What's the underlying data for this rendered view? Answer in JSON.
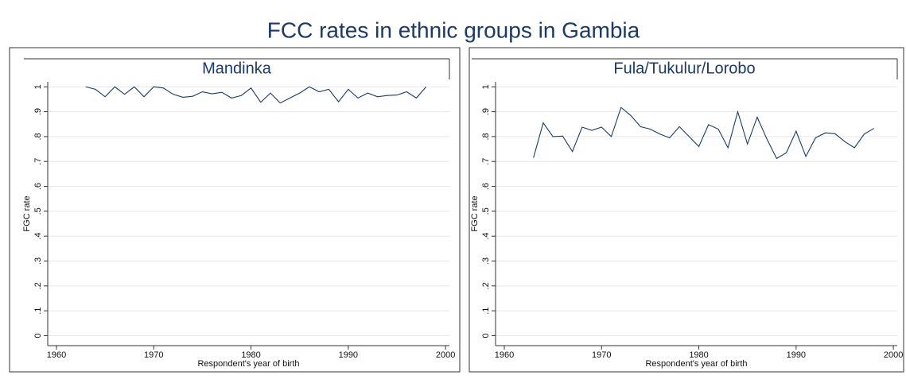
{
  "title": "FCC rates in ethnic groups in Gambia",
  "chart_data": [
    {
      "type": "line",
      "title": "Mandinka",
      "x_label": "Respondent's year of birth",
      "y_label": "FGC rate",
      "x": [
        1963,
        1964,
        1965,
        1966,
        1967,
        1968,
        1969,
        1970,
        1971,
        1972,
        1973,
        1974,
        1975,
        1976,
        1977,
        1978,
        1979,
        1980,
        1981,
        1982,
        1983,
        1984,
        1985,
        1986,
        1987,
        1988,
        1989,
        1990,
        1991,
        1992,
        1993,
        1994,
        1995,
        1996,
        1997,
        1998
      ],
      "values": [
        1.0,
        0.99,
        0.96,
        1.0,
        0.97,
        1.0,
        0.96,
        1.0,
        0.995,
        0.97,
        0.958,
        0.962,
        0.98,
        0.972,
        0.978,
        0.955,
        0.965,
        0.995,
        0.938,
        0.975,
        0.935,
        0.955,
        0.975,
        1.0,
        0.98,
        0.99,
        0.94,
        0.99,
        0.955,
        0.975,
        0.96,
        0.965,
        0.967,
        0.98,
        0.955,
        1.0
      ],
      "color": "#1a3a6a",
      "xlim": [
        1959.1,
        2000.4
      ],
      "ylim": [
        -0.04,
        1.02
      ],
      "xticks": [
        1960,
        1970,
        1980,
        1990,
        2000
      ],
      "yticks": [
        0,
        {
          "value": 0.1,
          "label": ".1"
        },
        {
          "value": 0.2,
          "label": ".2"
        },
        {
          "value": 0.3,
          "label": ".3"
        },
        {
          "value": 0.4,
          "label": ".4"
        },
        {
          "value": 0.5,
          "label": ".5"
        },
        {
          "value": 0.6,
          "label": ".6"
        },
        {
          "value": 0.7,
          "label": ".7"
        },
        {
          "value": 0.8,
          "label": ".8"
        },
        {
          "value": 0.9,
          "label": ".9"
        },
        1
      ],
      "grid": true
    },
    {
      "type": "line",
      "title": "Fula/Tukulur/Lorobo",
      "x_label": "Respondent's year of birth",
      "y_label": "FGC rate",
      "x": [
        1963,
        1964,
        1965,
        1966,
        1967,
        1968,
        1969,
        1970,
        1971,
        1972,
        1973,
        1974,
        1975,
        1976,
        1977,
        1978,
        1979,
        1980,
        1981,
        1982,
        1983,
        1984,
        1985,
        1986,
        1987,
        1988,
        1989,
        1990,
        1991,
        1992,
        1993,
        1994,
        1995,
        1996,
        1997,
        1998
      ],
      "values": [
        0.715,
        0.855,
        0.8,
        0.802,
        0.74,
        0.838,
        0.825,
        0.838,
        0.8,
        0.917,
        0.885,
        0.84,
        0.83,
        0.81,
        0.795,
        0.84,
        0.8,
        0.76,
        0.848,
        0.83,
        0.755,
        0.9,
        0.77,
        0.878,
        0.79,
        0.712,
        0.735,
        0.822,
        0.72,
        0.795,
        0.815,
        0.812,
        0.78,
        0.755,
        0.81,
        0.833
      ],
      "color": "#1a3a6a",
      "xlim": [
        1959.1,
        2000.4
      ],
      "ylim": [
        -0.04,
        1.02
      ],
      "xticks": [
        1960,
        1970,
        1980,
        1990,
        2000
      ],
      "yticks": [
        0,
        {
          "value": 0.1,
          "label": ".1"
        },
        {
          "value": 0.2,
          "label": ".2"
        },
        {
          "value": 0.3,
          "label": ".3"
        },
        {
          "value": 0.4,
          "label": ".4"
        },
        {
          "value": 0.5,
          "label": ".5"
        },
        {
          "value": 0.6,
          "label": ".6"
        },
        {
          "value": 0.7,
          "label": ".7"
        },
        {
          "value": 0.8,
          "label": ".8"
        },
        {
          "value": 0.9,
          "label": ".9"
        },
        1
      ],
      "grid": true
    }
  ]
}
